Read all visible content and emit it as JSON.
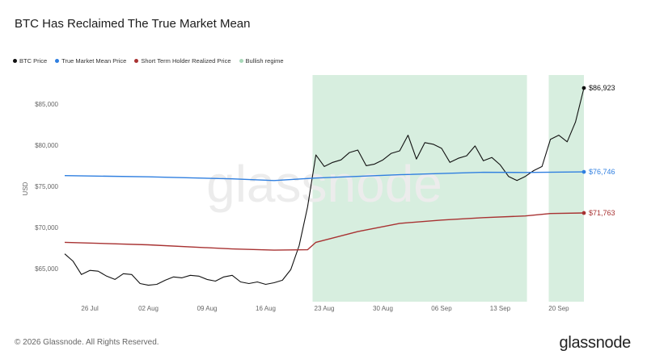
{
  "header": {
    "title": "BTC Has Reclaimed The True Market Mean"
  },
  "legend": [
    {
      "label": "BTC Price",
      "color": "#111111"
    },
    {
      "label": "True Market Mean Price",
      "color": "#2f7fe0"
    },
    {
      "label": "Short Term Holder Realized Price",
      "color": "#a83232"
    },
    {
      "label": "Bullish regime",
      "color": "#a8d8b9"
    }
  ],
  "footer": {
    "copyright": "© 2026 Glassnode. All Rights Reserved.",
    "brand": "glassnode"
  },
  "chart_data": {
    "type": "line",
    "title": "BTC Has Reclaimed The True Market Mean",
    "ylabel": "USD",
    "xlabel": "",
    "watermark": "glassnode",
    "x_range": [
      0,
      62
    ],
    "ylim": [
      61000,
      88500
    ],
    "y_ticks": [
      {
        "value": 65000,
        "label": "$65,000"
      },
      {
        "value": 70000,
        "label": "$70,000"
      },
      {
        "value": 75000,
        "label": "$75,000"
      },
      {
        "value": 80000,
        "label": "$80,000"
      },
      {
        "value": 85000,
        "label": "$85,000"
      }
    ],
    "x_ticks": [
      {
        "day": 3,
        "label": "26 Jul"
      },
      {
        "day": 10,
        "label": "02 Aug"
      },
      {
        "day": 17,
        "label": "09 Aug"
      },
      {
        "day": 24,
        "label": "16 Aug"
      },
      {
        "day": 31,
        "label": "23 Aug"
      },
      {
        "day": 38,
        "label": "30 Aug"
      },
      {
        "day": 45,
        "label": "06 Sep"
      },
      {
        "day": 52,
        "label": "13 Sep"
      },
      {
        "day": 59,
        "label": "20 Sep"
      }
    ],
    "regions": [
      {
        "name": "Bullish regime",
        "start": 29.6,
        "end": 55.2
      },
      {
        "name": "Bullish regime",
        "start": 57.8,
        "end": 62
      }
    ],
    "series": [
      {
        "name": "BTC Price",
        "color": "#111111",
        "x": [
          0,
          1,
          2,
          3,
          4,
          5,
          6,
          7,
          8,
          9,
          10,
          11,
          12,
          13,
          14,
          15,
          16,
          17,
          18,
          19,
          20,
          21,
          22,
          23,
          24,
          25,
          26,
          27,
          28,
          29,
          30,
          31,
          32,
          33,
          34,
          35,
          36,
          37,
          38,
          39,
          40,
          41,
          42,
          43,
          44,
          45,
          46,
          47,
          48,
          49,
          50,
          51,
          52,
          53,
          54,
          55,
          56,
          57,
          58,
          59,
          60,
          61,
          62
        ],
        "values": [
          66800,
          65900,
          64300,
          64800,
          64700,
          64100,
          63700,
          64400,
          64300,
          63200,
          63000,
          63100,
          63600,
          64000,
          63900,
          64200,
          64100,
          63700,
          63500,
          64000,
          64200,
          63400,
          63200,
          63400,
          63100,
          63300,
          63600,
          64900,
          67800,
          72500,
          78800,
          77400,
          77900,
          78200,
          79100,
          79400,
          77500,
          77700,
          78200,
          79000,
          79300,
          81200,
          78300,
          80300,
          80100,
          79600,
          77900,
          78400,
          78700,
          79900,
          78100,
          78500,
          77600,
          76200,
          75700,
          76200,
          76900,
          77400,
          80700,
          81200,
          80400,
          82800,
          86923
        ]
      },
      {
        "name": "True Market Mean Price",
        "color": "#2f7fe0",
        "x": [
          0,
          10,
          20,
          25,
          30,
          40,
          50,
          55,
          62
        ],
        "values": [
          76300,
          76150,
          75900,
          75700,
          76000,
          76400,
          76700,
          76680,
          76746
        ]
      },
      {
        "name": "Short Term Holder Realized Price",
        "color": "#a83232",
        "x": [
          0,
          10,
          20,
          25,
          29,
          30,
          35,
          40,
          45,
          50,
          55,
          58,
          62
        ],
        "values": [
          68200,
          67900,
          67400,
          67250,
          67300,
          68200,
          69500,
          70500,
          70900,
          71200,
          71400,
          71700,
          71763
        ]
      }
    ],
    "end_labels": [
      {
        "series": "BTC Price",
        "label": "$86,923"
      },
      {
        "series": "True Market Mean Price",
        "label": "$76,746"
      },
      {
        "series": "Short Term Holder Realized Price",
        "label": "$71,763"
      }
    ]
  }
}
